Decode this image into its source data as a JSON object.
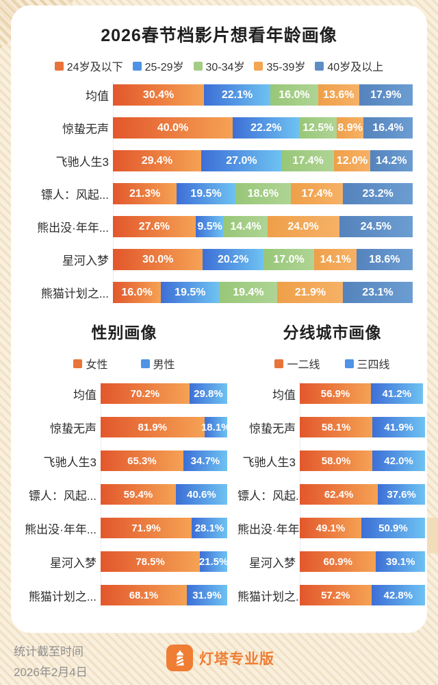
{
  "footer": {
    "stat_label": "统计截至时间",
    "stat_date": "2026年2月4日",
    "brand": "灯塔专业版",
    "brand_color": "#ef7d33"
  },
  "chart_data": [
    {
      "type": "bar",
      "stacked": true,
      "orientation": "horizontal",
      "title": "2026春节档影片想看年龄画像",
      "unit": "%",
      "legend_position": "top",
      "xlim": [
        0,
        100
      ],
      "categories": [
        "均值",
        "惊蛰无声",
        "飞驰人生3",
        "镖人：风起...",
        "熊出没·年年...",
        "星河入梦",
        "熊猫计划之..."
      ],
      "series": [
        {
          "name": "24岁及以下",
          "values": [
            30.4,
            40.0,
            29.4,
            21.3,
            27.6,
            30.0,
            16.0
          ]
        },
        {
          "name": "25-29岁",
          "values": [
            22.1,
            22.2,
            27.0,
            19.5,
            9.5,
            20.2,
            19.5
          ]
        },
        {
          "name": "30-34岁",
          "values": [
            16.0,
            12.5,
            17.4,
            18.6,
            14.4,
            17.0,
            19.4
          ]
        },
        {
          "name": "35-39岁",
          "values": [
            13.6,
            8.9,
            12.0,
            17.4,
            24.0,
            14.1,
            21.9
          ]
        },
        {
          "name": "40岁及以上",
          "values": [
            17.9,
            16.4,
            14.2,
            23.2,
            24.5,
            18.6,
            23.1
          ]
        }
      ],
      "colors": [
        {
          "legend": "#e8743a",
          "from": "#e2572c",
          "to": "#f5a254"
        },
        {
          "legend": "#4e93e6",
          "from": "#3d6fd6",
          "to": "#6ec2f2"
        },
        {
          "legend": "#a3cd85",
          "from": "#98c778",
          "to": "#afd494"
        },
        {
          "legend": "#f3a551",
          "from": "#ef9f49",
          "to": "#f6b166"
        },
        {
          "legend": "#5d8dc5",
          "from": "#5583bd",
          "to": "#6b9dd2"
        }
      ]
    },
    {
      "type": "bar",
      "stacked": true,
      "orientation": "horizontal",
      "title": "性别画像",
      "unit": "%",
      "legend_position": "top",
      "xlim": [
        0,
        100
      ],
      "categories": [
        "均值",
        "惊蛰无声",
        "飞驰人生3",
        "镖人：风起...",
        "熊出没·年年...",
        "星河入梦",
        "熊猫计划之..."
      ],
      "series": [
        {
          "name": "女性",
          "values": [
            70.2,
            81.9,
            65.3,
            59.4,
            71.9,
            78.5,
            68.1
          ]
        },
        {
          "name": "男性",
          "values": [
            29.8,
            18.1,
            34.7,
            40.6,
            28.1,
            21.5,
            31.9
          ]
        }
      ],
      "colors": [
        {
          "legend": "#e8743a",
          "from": "#e2572c",
          "to": "#f5a254"
        },
        {
          "legend": "#4e93e6",
          "from": "#3d6fd6",
          "to": "#6ec2f2"
        }
      ]
    },
    {
      "type": "bar",
      "stacked": true,
      "orientation": "horizontal",
      "title": "分线城市画像",
      "unit": "%",
      "legend_position": "top",
      "xlim": [
        0,
        100
      ],
      "categories": [
        "均值",
        "惊蛰无声",
        "飞驰人生3",
        "镖人：风起...",
        "熊出没·年年...",
        "星河入梦",
        "熊猫计划之..."
      ],
      "series": [
        {
          "name": "一二线",
          "values": [
            56.9,
            58.1,
            58.0,
            62.4,
            49.1,
            60.9,
            57.2
          ]
        },
        {
          "name": "三四线",
          "values": [
            41.2,
            41.9,
            42.0,
            37.6,
            50.9,
            39.1,
            42.8
          ]
        }
      ],
      "colors": [
        {
          "legend": "#e8743a",
          "from": "#e2572c",
          "to": "#f5a254"
        },
        {
          "legend": "#4e93e6",
          "from": "#3d6fd6",
          "to": "#6ec2f2"
        }
      ]
    }
  ]
}
